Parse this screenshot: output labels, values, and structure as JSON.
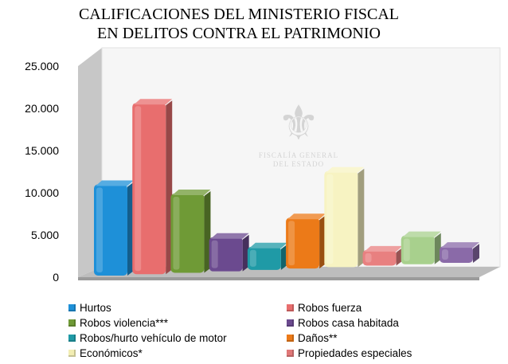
{
  "title_line1": "CALIFICACIONES DEL MINISTERIO FISCAL",
  "title_line2": "EN DELITOS CONTRA EL PATRIMONIO",
  "watermark": {
    "line1": "FISCALÍA GENERAL",
    "line2": "DEL ESTADO"
  },
  "chart_data": {
    "type": "bar",
    "title": "CALIFICACIONES DEL MINISTERIO FISCAL EN DELITOS CONTRA EL PATRIMONIO",
    "xlabel": "",
    "ylabel": "",
    "ylim": [
      0,
      25000
    ],
    "yticks": [
      "0",
      "5.000",
      "10.000",
      "15.000",
      "20.000",
      "25.000"
    ],
    "grid": false,
    "legend_position": "bottom",
    "categories": [
      "Hurtos",
      "Robos fuerza",
      "Robos violencia***",
      "Robos casa habitada",
      "Robos/hurto vehículo de motor",
      "Daños**",
      "Económicos*",
      "Propiedades especiales",
      "",
      ""
    ],
    "series": [
      {
        "values": [
          10800,
          20200,
          9300,
          4000,
          2700,
          5900,
          11100,
          1800,
          3300,
          1900
        ],
        "colors": [
          "#1e90d8",
          "#e86e6e",
          "#6f9a36",
          "#6b4a8f",
          "#1f9aa6",
          "#ec7a18",
          "#f7f3c2",
          "#e88080",
          "#a8d08d",
          "#8a6aa8"
        ]
      }
    ]
  },
  "legend": [
    {
      "label": "Hurtos",
      "color": "#1e90d8"
    },
    {
      "label": "Robos fuerza",
      "color": "#e86e6e"
    },
    {
      "label": "Robos violencia***",
      "color": "#6f9a36"
    },
    {
      "label": "Robos casa habitada",
      "color": "#6b4a8f"
    },
    {
      "label": "Robos/hurto vehículo de motor",
      "color": "#1f9aa6"
    },
    {
      "label": "Daños**",
      "color": "#ec7a18"
    },
    {
      "label": "Económicos*",
      "color": "#f2edb3"
    },
    {
      "label": "Propiedades especiales",
      "color": "#e07878"
    }
  ]
}
